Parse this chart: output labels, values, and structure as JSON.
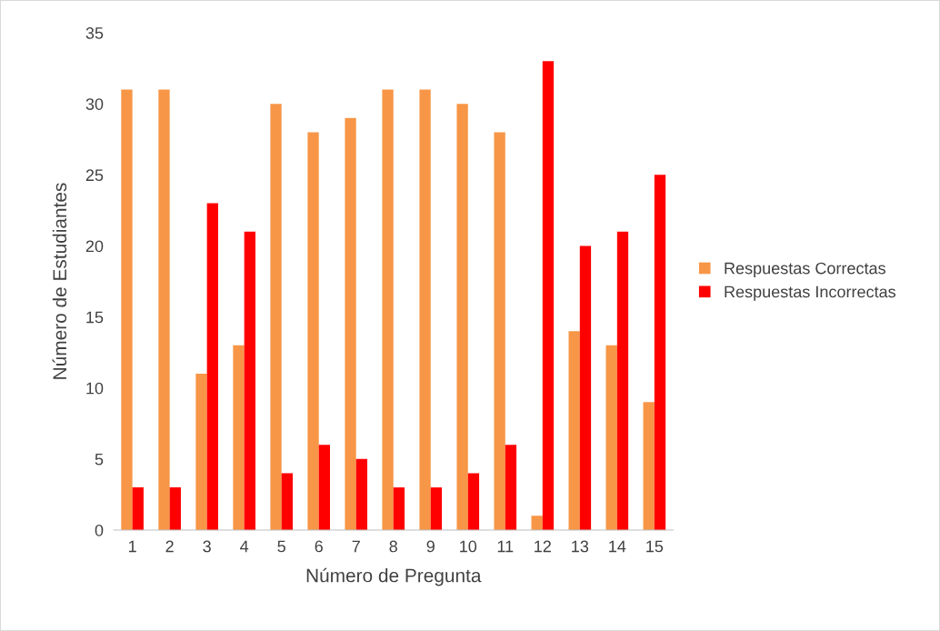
{
  "chart_data": {
    "type": "bar",
    "xlabel": "Número de Pregunta",
    "ylabel": "Número de Estudiantes",
    "categories": [
      "1",
      "2",
      "3",
      "4",
      "5",
      "6",
      "7",
      "8",
      "9",
      "10",
      "11",
      "12",
      "13",
      "14",
      "15"
    ],
    "series": [
      {
        "name": "Respuestas Correctas",
        "color": "#f79646",
        "values": [
          31,
          31,
          11,
          13,
          30,
          28,
          29,
          31,
          31,
          30,
          28,
          1,
          14,
          13,
          9
        ]
      },
      {
        "name": "Respuestas Incorrectas",
        "color": "#ff0000",
        "values": [
          3,
          3,
          23,
          21,
          4,
          6,
          5,
          3,
          3,
          4,
          6,
          33,
          20,
          21,
          25
        ]
      }
    ],
    "ylim": [
      0,
      35
    ],
    "yticks": [
      0,
      5,
      10,
      15,
      20,
      25,
      30,
      35
    ],
    "grid": false,
    "legend": "right"
  }
}
